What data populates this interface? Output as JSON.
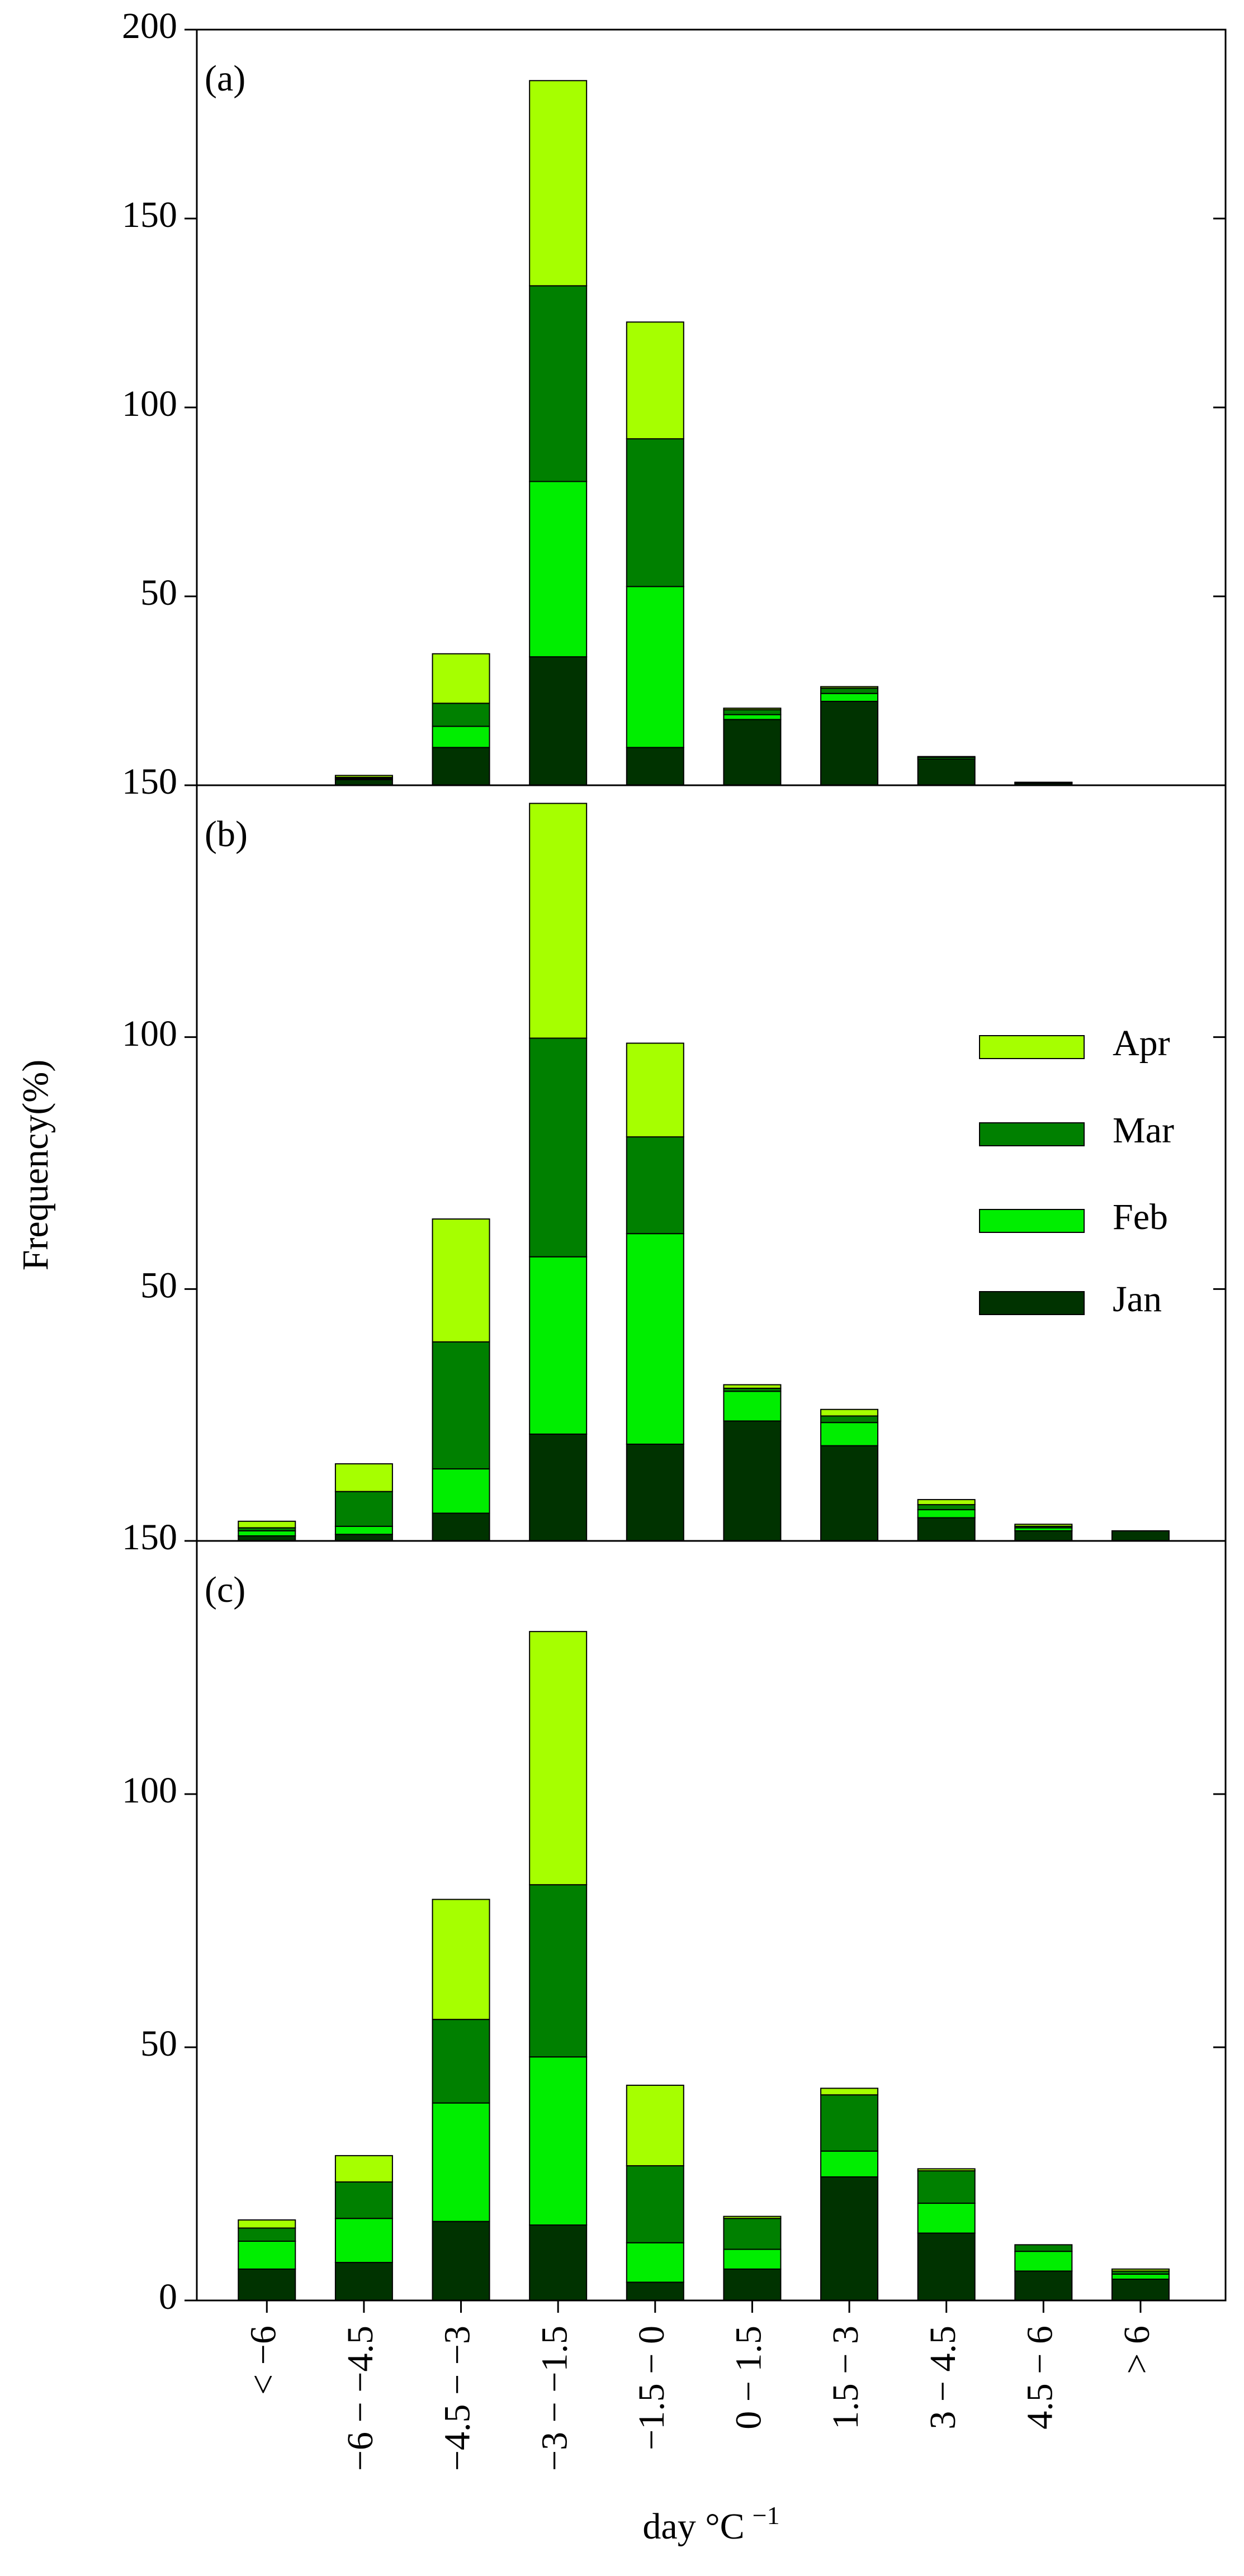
{
  "chart_data": [
    {
      "type": "bar",
      "stacked": true,
      "label": "(a)",
      "ylim": [
        0,
        200
      ],
      "yticks": [
        0,
        50,
        100,
        150,
        200
      ],
      "series": [
        {
          "color": "#003300",
          "values": [
            0,
            1.5,
            10,
            34,
            10,
            17.4,
            22.2,
            7,
            0.5,
            0
          ]
        },
        {
          "color": "#00ee00",
          "values": [
            0,
            0.3,
            5.6,
            46.4,
            42.6,
            1.3,
            2.1,
            0.4,
            0.1,
            0
          ]
        },
        {
          "color": "#008000",
          "values": [
            0,
            0.3,
            6.1,
            51.8,
            39.1,
            1.3,
            1.4,
            0.2,
            0.1,
            0
          ]
        },
        {
          "color": "#a6ff00",
          "values": [
            0,
            0.5,
            13.1,
            54.3,
            30.9,
            0.4,
            0.4,
            0,
            0.1,
            0
          ]
        }
      ]
    },
    {
      "type": "bar",
      "stacked": true,
      "label": "(b)",
      "ylim": [
        0,
        150
      ],
      "yticks": [
        0,
        50,
        100,
        150
      ],
      "y_label": "Frequency(%)",
      "legend": "right",
      "series": [
        {
          "name": "Jan",
          "color": "#003300",
          "values": [
            1,
            1.3,
            5.5,
            21.2,
            19.2,
            23.8,
            18.9,
            4.6,
            2,
            2
          ]
        },
        {
          "name": "Feb",
          "color": "#00ee00",
          "values": [
            1,
            1.6,
            8.8,
            35.2,
            41.8,
            5.9,
            4.6,
            1.6,
            0.6,
            0
          ]
        },
        {
          "name": "Mar",
          "color": "#008000",
          "values": [
            0.6,
            6.9,
            25.2,
            43.4,
            19.2,
            0.6,
            1.3,
            1,
            0.3,
            0
          ]
        },
        {
          "name": "Apr",
          "color": "#a6ff00",
          "values": [
            1.3,
            5.5,
            24.4,
            46.6,
            18.6,
            0.7,
            1.3,
            1,
            0.4,
            0
          ]
        }
      ]
    },
    {
      "type": "bar",
      "stacked": true,
      "label": "(c)",
      "ylim": [
        0,
        150
      ],
      "yticks": [
        0,
        50,
        100,
        150
      ],
      "categories": [
        "< −6",
        "−6 − −4.5",
        "−4.5 − −3",
        "−3 − −1.5",
        "−1.5 − 0",
        "0 − 1.5",
        "1.5 − 3",
        "3 − 4.5",
        "4.5 − 6",
        "> 6"
      ],
      "x_label": "day °C",
      "x_label_exponent": "−1",
      "series": [
        {
          "color": "#003300",
          "values": [
            6.2,
            7.5,
            15.6,
            14.9,
            3.6,
            6.2,
            24.4,
            13.3,
            5.8,
            4.2
          ]
        },
        {
          "color": "#00ee00",
          "values": [
            5.5,
            8.7,
            23.4,
            33.2,
            7.8,
            3.9,
            5.1,
            5.9,
            3.9,
            1
          ]
        },
        {
          "color": "#008000",
          "values": [
            2.6,
            7.2,
            16.5,
            34,
            15.2,
            6.1,
            11.1,
            6.4,
            1.3,
            0.6
          ]
        },
        {
          "color": "#a6ff00",
          "values": [
            1.6,
            5.2,
            23.7,
            50,
            15.9,
            0.4,
            1.3,
            0.4,
            0,
            0.4
          ]
        }
      ]
    }
  ]
}
